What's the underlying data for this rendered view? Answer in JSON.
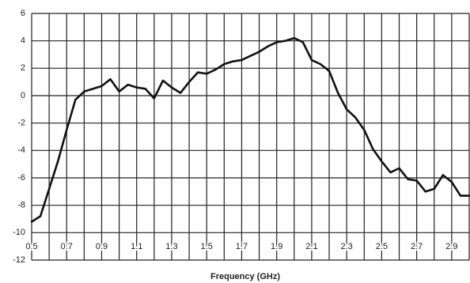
{
  "chart_data": {
    "type": "line",
    "x_label": "Frequency (GHz)",
    "x": [
      0.5,
      0.55,
      0.6,
      0.65,
      0.7,
      0.75,
      0.8,
      0.85,
      0.9,
      0.95,
      1.0,
      1.05,
      1.1,
      1.15,
      1.2,
      1.25,
      1.3,
      1.35,
      1.4,
      1.45,
      1.5,
      1.55,
      1.6,
      1.65,
      1.7,
      1.75,
      1.8,
      1.85,
      1.9,
      1.95,
      2.0,
      2.05,
      2.1,
      2.15,
      2.2,
      2.25,
      2.3,
      2.35,
      2.4,
      2.45,
      2.5,
      2.55,
      2.6,
      2.65,
      2.7,
      2.75,
      2.8,
      2.85,
      2.9,
      2.95,
      3.0
    ],
    "values": [
      -9.2,
      -8.8,
      -6.8,
      -4.8,
      -2.5,
      -0.3,
      0.3,
      0.5,
      0.7,
      1.2,
      0.3,
      0.8,
      0.6,
      0.5,
      -0.2,
      1.1,
      0.6,
      0.2,
      1.0,
      1.7,
      1.6,
      1.9,
      2.3,
      2.5,
      2.6,
      2.9,
      3.2,
      3.6,
      3.9,
      4.0,
      4.2,
      3.9,
      2.6,
      2.3,
      1.8,
      0.2,
      -1.0,
      -1.6,
      -2.5,
      -3.9,
      -4.8,
      -5.6,
      -5.3,
      -6.1,
      -6.2,
      -7.0,
      -6.8,
      -5.8,
      -6.3,
      -7.3,
      -7.3
    ],
    "color": "#111111",
    "xlim": [
      0.5,
      3.0
    ],
    "xticks": [
      0.5,
      0.7,
      0.9,
      1.1,
      1.3,
      1.5,
      1.7,
      1.9,
      2.1,
      2.3,
      2.5,
      2.7,
      2.9
    ],
    "xminor_ticks": [
      0.6,
      0.8,
      1.0,
      1.2,
      1.4,
      1.6,
      1.8,
      2.0,
      2.2,
      2.4,
      2.6,
      2.8,
      3.0
    ],
    "ylim": [
      -12,
      6
    ],
    "yticks": [
      -12,
      -10,
      -8,
      -6,
      -4,
      -2,
      0,
      2,
      4,
      6
    ],
    "grid": true
  }
}
